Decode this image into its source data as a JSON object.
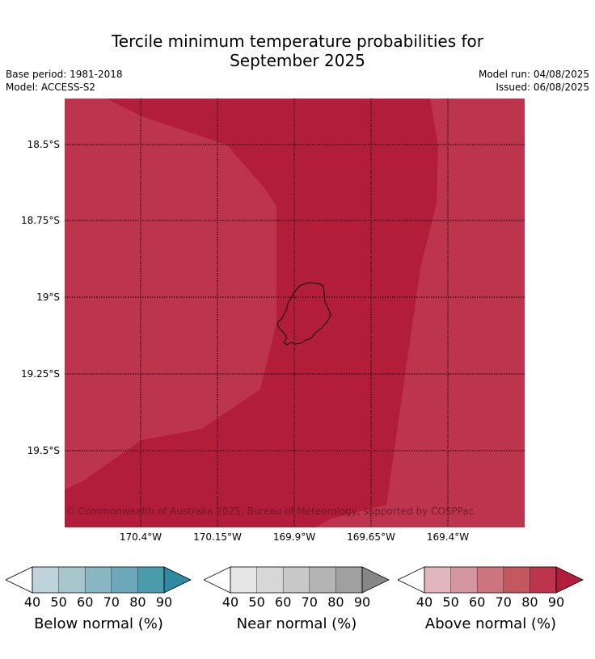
{
  "title": {
    "line1": "Tercile minimum temperature probabilities for",
    "line2": "September 2025"
  },
  "meta": {
    "base_period": "Base period: 1981-2018",
    "model": "Model: ACCESS-S2",
    "model_run": "Model run: 04/08/2025",
    "issued": "Issued: 06/08/2025"
  },
  "map": {
    "attribution": "© Commonwealth of Australia 2025, Bureau of Meteorology, supported by COSPPac",
    "colors": {
      "above_80_90": "#bc354c",
      "above_90_plus": "#b21d3a",
      "coastline": "#000000"
    },
    "lat_labels": [
      "18.5°S",
      "18.75°S",
      "19°S",
      "19.25°S",
      "19.5°S"
    ],
    "lon_labels": [
      "170.4°W",
      "170.15°W",
      "169.9°W",
      "169.65°W",
      "169.4°W"
    ]
  },
  "colorbars": [
    {
      "label": "Below normal (%)",
      "ticks": [
        "40",
        "50",
        "60",
        "70",
        "80",
        "90"
      ],
      "colors": [
        "#bfd3da",
        "#a6c6cc",
        "#89b7c3",
        "#6ba9b9",
        "#4a9cad",
        "#2e8aa1"
      ]
    },
    {
      "label": "Near normal (%)",
      "ticks": [
        "40",
        "50",
        "60",
        "70",
        "80",
        "90"
      ],
      "colors": [
        "#e6e6e6",
        "#d7d7d7",
        "#c8c8c8",
        "#b4b4b4",
        "#a0a0a0",
        "#878787"
      ]
    },
    {
      "label": "Above normal (%)",
      "ticks": [
        "40",
        "50",
        "60",
        "70",
        "80",
        "90"
      ],
      "colors": [
        "#e2b6bd",
        "#d6969f",
        "#cd7680",
        "#c5575f",
        "#bc354c",
        "#b21d3a"
      ]
    }
  ]
}
